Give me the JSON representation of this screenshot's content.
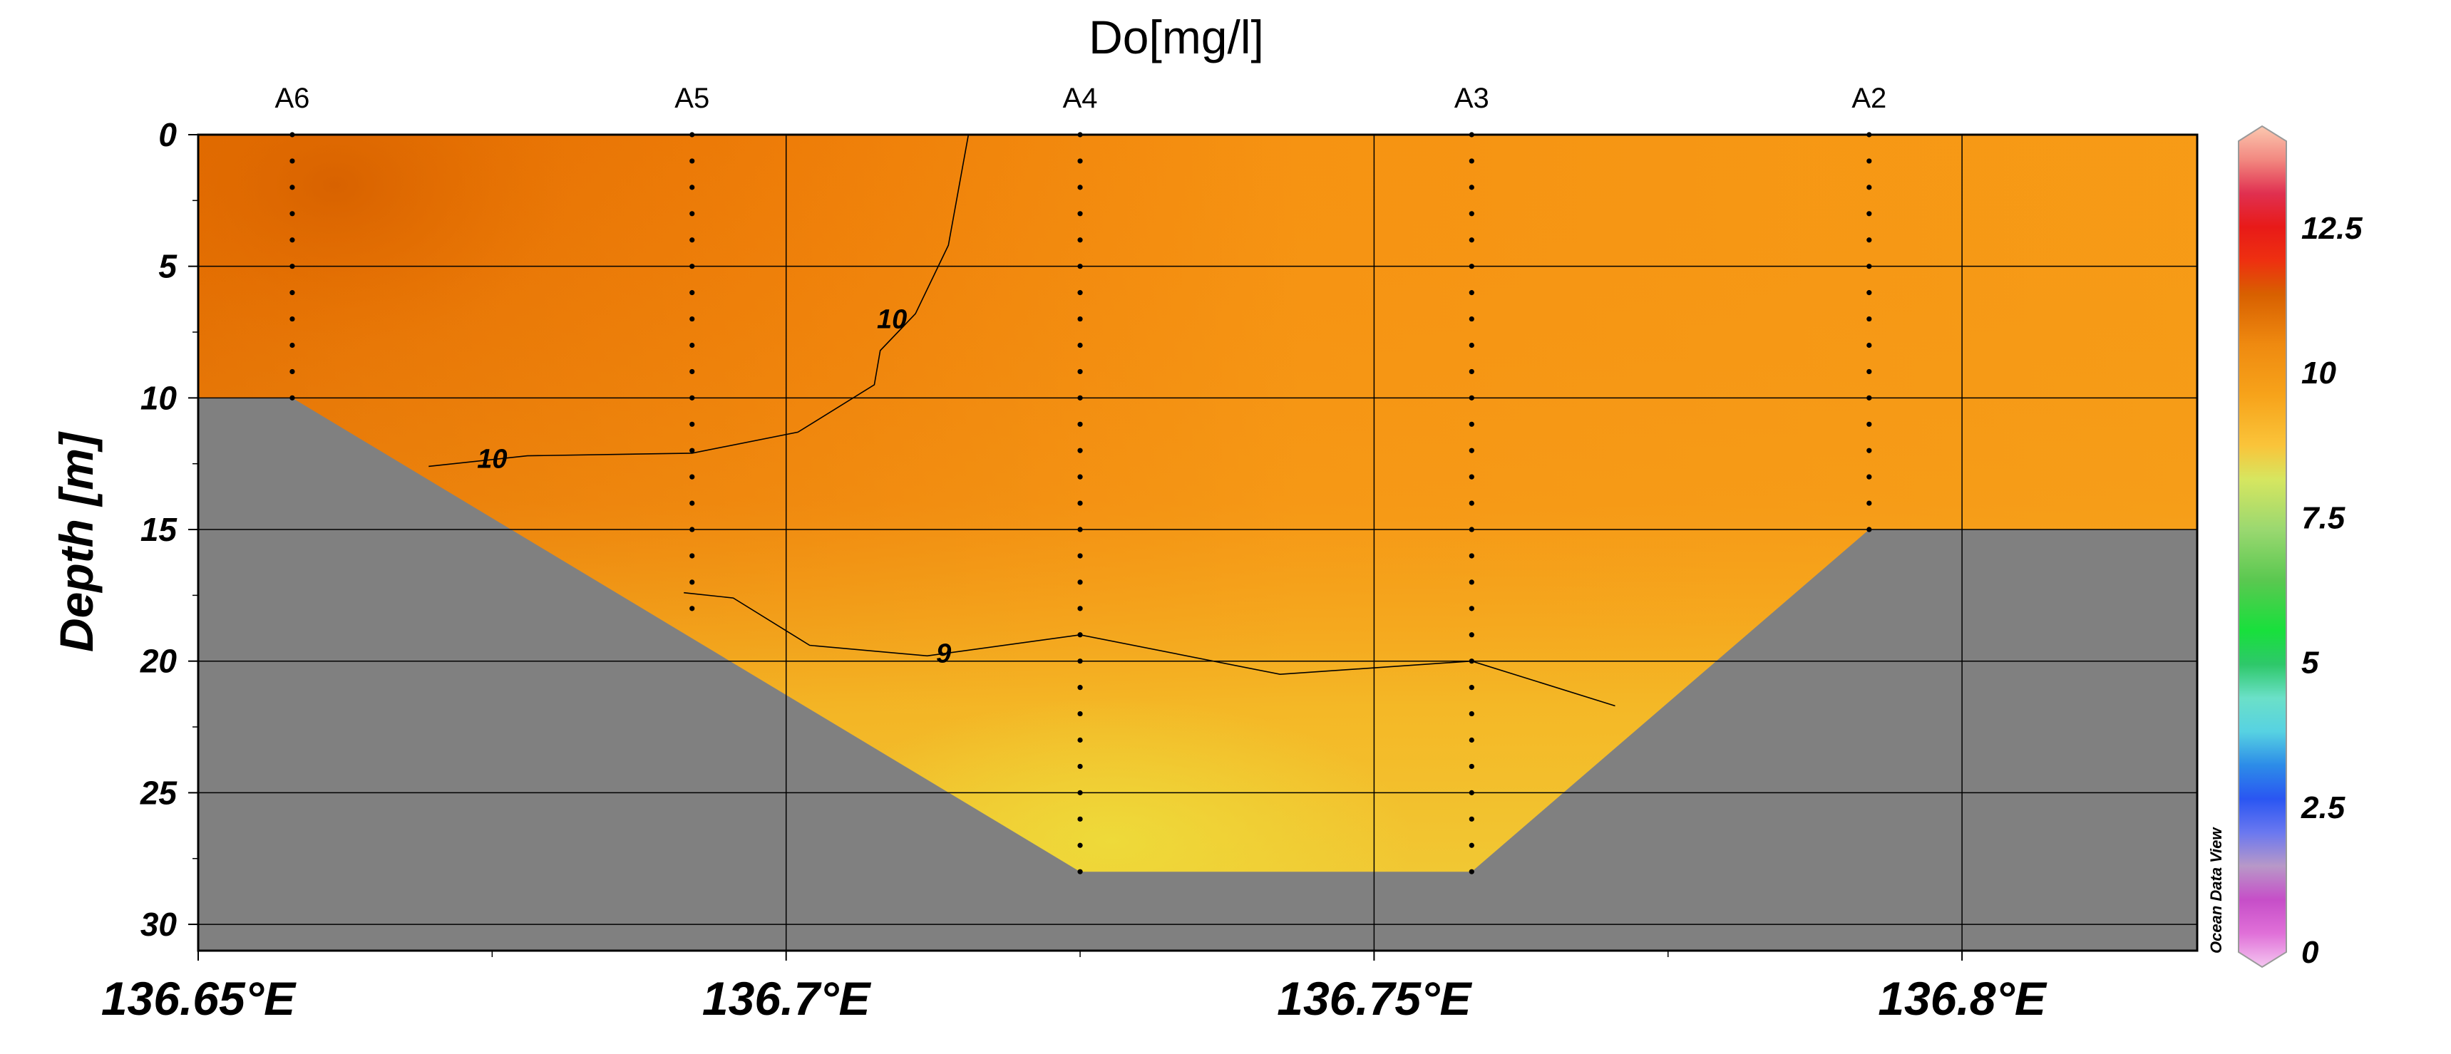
{
  "chart_data": {
    "type": "section",
    "title": "Do[mg/l]",
    "xlabel": "",
    "ylabel": "Depth [m]",
    "xlim": [
      136.65,
      136.82
    ],
    "ylim": [
      0,
      31
    ],
    "x_ticks": [
      {
        "value": 136.65,
        "label": "136.65°E"
      },
      {
        "value": 136.7,
        "label": "136.7°E"
      },
      {
        "value": 136.75,
        "label": "136.75°E"
      },
      {
        "value": 136.8,
        "label": "136.8°E"
      }
    ],
    "y_ticks": [
      {
        "value": 0,
        "label": "0"
      },
      {
        "value": 5,
        "label": "5"
      },
      {
        "value": 10,
        "label": "10"
      },
      {
        "value": 15,
        "label": "15"
      },
      {
        "value": 20,
        "label": "20"
      },
      {
        "value": 25,
        "label": "25"
      },
      {
        "value": 30,
        "label": "30"
      }
    ],
    "stations": [
      {
        "name": "A6",
        "lon": 136.658,
        "max_depth": 10
      },
      {
        "name": "A5",
        "lon": 136.692,
        "max_depth": 18
      },
      {
        "name": "A4",
        "lon": 136.725,
        "max_depth": 28
      },
      {
        "name": "A3",
        "lon": 136.7583,
        "max_depth": 28
      },
      {
        "name": "A2",
        "lon": 136.7921,
        "max_depth": 15
      }
    ],
    "sample_depths": [
      0,
      1,
      2,
      3,
      4,
      5,
      6,
      7,
      8,
      9,
      10,
      11,
      12,
      13,
      14,
      15,
      16,
      17,
      18,
      19,
      20,
      21,
      22,
      23,
      24,
      25,
      26,
      27,
      28
    ],
    "bottom": [
      {
        "lon": 136.658,
        "depth": 10
      },
      {
        "lon": 136.7583,
        "depth": 28
      }
    ],
    "bottom_profile": [
      [
        136.65,
        10
      ],
      [
        136.658,
        10
      ],
      [
        136.725,
        28
      ],
      [
        136.7583,
        28
      ],
      [
        136.7921,
        15
      ],
      [
        136.82,
        15
      ]
    ],
    "contours": [
      {
        "level": 10,
        "label": "10",
        "points": [
          [
            136.6696,
            12.6
          ],
          [
            136.678,
            12.2
          ],
          [
            136.692,
            12.1
          ],
          [
            136.701,
            11.3
          ],
          [
            136.7075,
            9.5
          ],
          [
            136.708,
            8.2
          ],
          [
            136.711,
            6.8
          ],
          [
            136.7138,
            4.2
          ],
          [
            136.7155,
            0
          ]
        ],
        "labels": [
          {
            "lon": 136.675,
            "depth": 12.3
          },
          {
            "lon": 136.709,
            "depth": 7.0
          }
        ]
      },
      {
        "level": 9,
        "label": "9",
        "points": [
          [
            136.6913,
            17.4
          ],
          [
            136.6955,
            17.6
          ],
          [
            136.702,
            19.4
          ],
          [
            136.712,
            19.8
          ],
          [
            136.725,
            19.0
          ],
          [
            136.742,
            20.5
          ],
          [
            136.7583,
            20.0
          ],
          [
            136.7705,
            21.7
          ]
        ],
        "labels": [
          {
            "lon": 136.7134,
            "depth": 19.7
          }
        ]
      }
    ],
    "color_stops": [
      {
        "lon": 136.65,
        "depth": 0,
        "value": 10.9
      }
    ],
    "colorbar": {
      "range": [
        0,
        14
      ],
      "ticks": [
        {
          "value": 0,
          "label": "0"
        },
        {
          "value": 2.5,
          "label": "2.5"
        },
        {
          "value": 5,
          "label": "5"
        },
        {
          "value": 7.5,
          "label": "7.5"
        },
        {
          "value": 10,
          "label": "10"
        },
        {
          "value": 12.5,
          "label": "12.5"
        }
      ]
    },
    "watermark": "Ocean Data View",
    "colors": {
      "bottom": "#808080",
      "grid": "#000000",
      "contour": "#000000",
      "station_dot": "#000000"
    }
  }
}
